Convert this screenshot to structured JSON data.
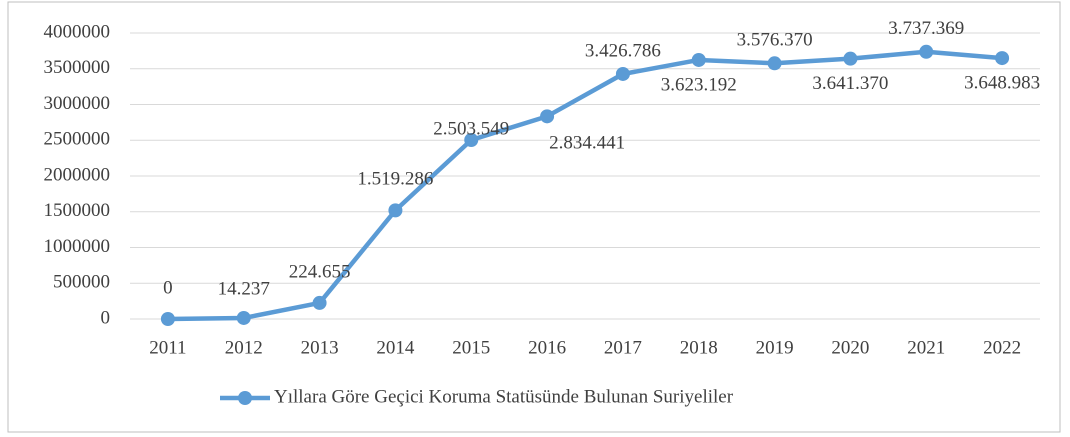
{
  "chart_data": {
    "type": "line",
    "categories": [
      "2011",
      "2012",
      "2013",
      "2014",
      "2015",
      "2016",
      "2017",
      "2018",
      "2019",
      "2020",
      "2021",
      "2022"
    ],
    "series": [
      {
        "name": "Yıllara Göre Geçici Koruma Statüsünde Bulunan Suriyeliler",
        "color": "#5b9bd5",
        "values": [
          0,
          14237,
          224655,
          1519286,
          2503549,
          2834441,
          3426786,
          3623192,
          3576370,
          3641370,
          3737369,
          3648983
        ],
        "value_labels": [
          "0",
          "14.237",
          "224.655",
          "1.519.286",
          "2.503.549",
          "2.834.441",
          "3.426.786",
          "3.623.192",
          "3.576.370",
          "3.641.370",
          "3.737.369",
          "3.648.983"
        ]
      }
    ],
    "ylim": [
      0,
      4000000
    ],
    "yticks": [
      0,
      500000,
      1000000,
      1500000,
      2000000,
      2500000,
      3000000,
      3500000,
      4000000
    ],
    "grid": true,
    "legend": "bottom"
  }
}
